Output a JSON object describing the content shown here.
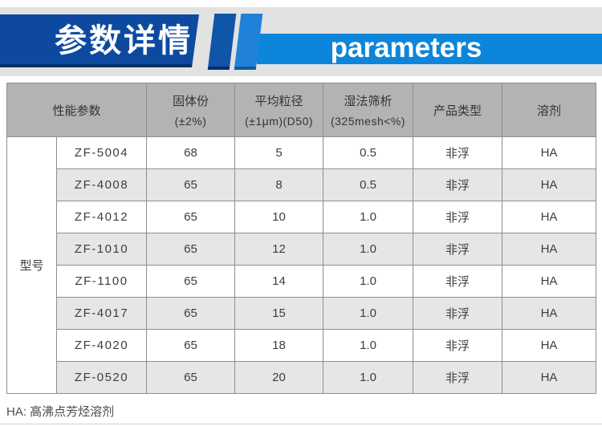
{
  "banner": {
    "title_cn": "参数详情",
    "title_en": "parameters"
  },
  "colors": {
    "dark_blue": "#0d4a9f",
    "dark_blue_shadow": "#0a3068",
    "stripe_dark": "#0f55aa",
    "stripe_light": "#1f82d8",
    "bar_blue": "#0d85da",
    "band_gray": "#e2e2e2",
    "header_gray": "#b3b3b3",
    "alt_row_gray": "#e6e6e6",
    "border_gray": "#8e8e8e"
  },
  "table": {
    "row_group_label": "型号",
    "columns": [
      {
        "line1": "性能参数",
        "line2": ""
      },
      {
        "line1": "固体份",
        "line2": "(±2%)"
      },
      {
        "line1": "平均粒径",
        "line2": "(±1μm)(D50)"
      },
      {
        "line1": "湿法筛析",
        "line2": "(325mesh<%)"
      },
      {
        "line1": "产品类型",
        "line2": ""
      },
      {
        "line1": "溶剂",
        "line2": ""
      }
    ],
    "rows": [
      {
        "model": "ZF-5004",
        "solid": "68",
        "particle": "5",
        "sieve": "0.5",
        "type": "非浮",
        "solvent": "HA"
      },
      {
        "model": "ZF-4008",
        "solid": "65",
        "particle": "8",
        "sieve": "0.5",
        "type": "非浮",
        "solvent": "HA"
      },
      {
        "model": "ZF-4012",
        "solid": "65",
        "particle": "10",
        "sieve": "1.0",
        "type": "非浮",
        "solvent": "HA"
      },
      {
        "model": "ZF-1010",
        "solid": "65",
        "particle": "12",
        "sieve": "1.0",
        "type": "非浮",
        "solvent": "HA"
      },
      {
        "model": "ZF-1100",
        "solid": "65",
        "particle": "14",
        "sieve": "1.0",
        "type": "非浮",
        "solvent": "HA"
      },
      {
        "model": "ZF-4017",
        "solid": "65",
        "particle": "15",
        "sieve": "1.0",
        "type": "非浮",
        "solvent": "HA"
      },
      {
        "model": "ZF-4020",
        "solid": "65",
        "particle": "18",
        "sieve": "1.0",
        "type": "非浮",
        "solvent": "HA"
      },
      {
        "model": "ZF-0520",
        "solid": "65",
        "particle": "20",
        "sieve": "1.0",
        "type": "非浮",
        "solvent": "HA"
      }
    ]
  },
  "footnote": "HA: 高沸点芳烃溶剂"
}
